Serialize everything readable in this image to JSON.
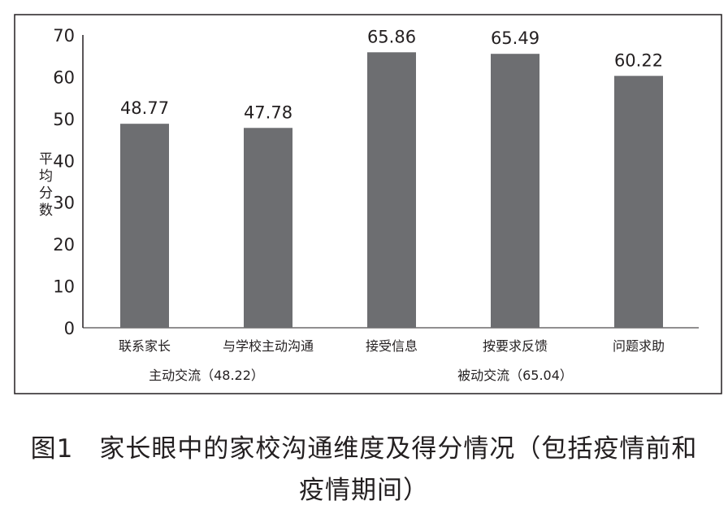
{
  "chart_data": {
    "type": "bar",
    "categories": [
      "联系家长",
      "与学校主动沟通",
      "接受信息",
      "按要求反馈",
      "问题求助"
    ],
    "values": [
      48.77,
      47.78,
      65.86,
      65.49,
      60.22
    ],
    "data_labels": [
      "48.77",
      "47.78",
      "65.86",
      "65.49",
      "60.22"
    ],
    "groups": [
      {
        "label": "主动交流（48.22）",
        "categories": [
          "联系家长",
          "与学校主动沟通"
        ]
      },
      {
        "label": "被动交流（65.04）",
        "categories": [
          "接受信息",
          "按要求反馈",
          "问题求助"
        ]
      }
    ],
    "ylabel": "平均分数",
    "ylim": [
      0,
      70
    ],
    "yticks": [
      "0",
      "10",
      "20",
      "30",
      "40",
      "50",
      "60",
      "70"
    ],
    "grid": false,
    "bar_color": "#6d6e71"
  },
  "caption": {
    "line1": "图1　家长眼中的家校沟通维度及得分情况（包括疫情前和",
    "line2": "疫情期间）"
  }
}
